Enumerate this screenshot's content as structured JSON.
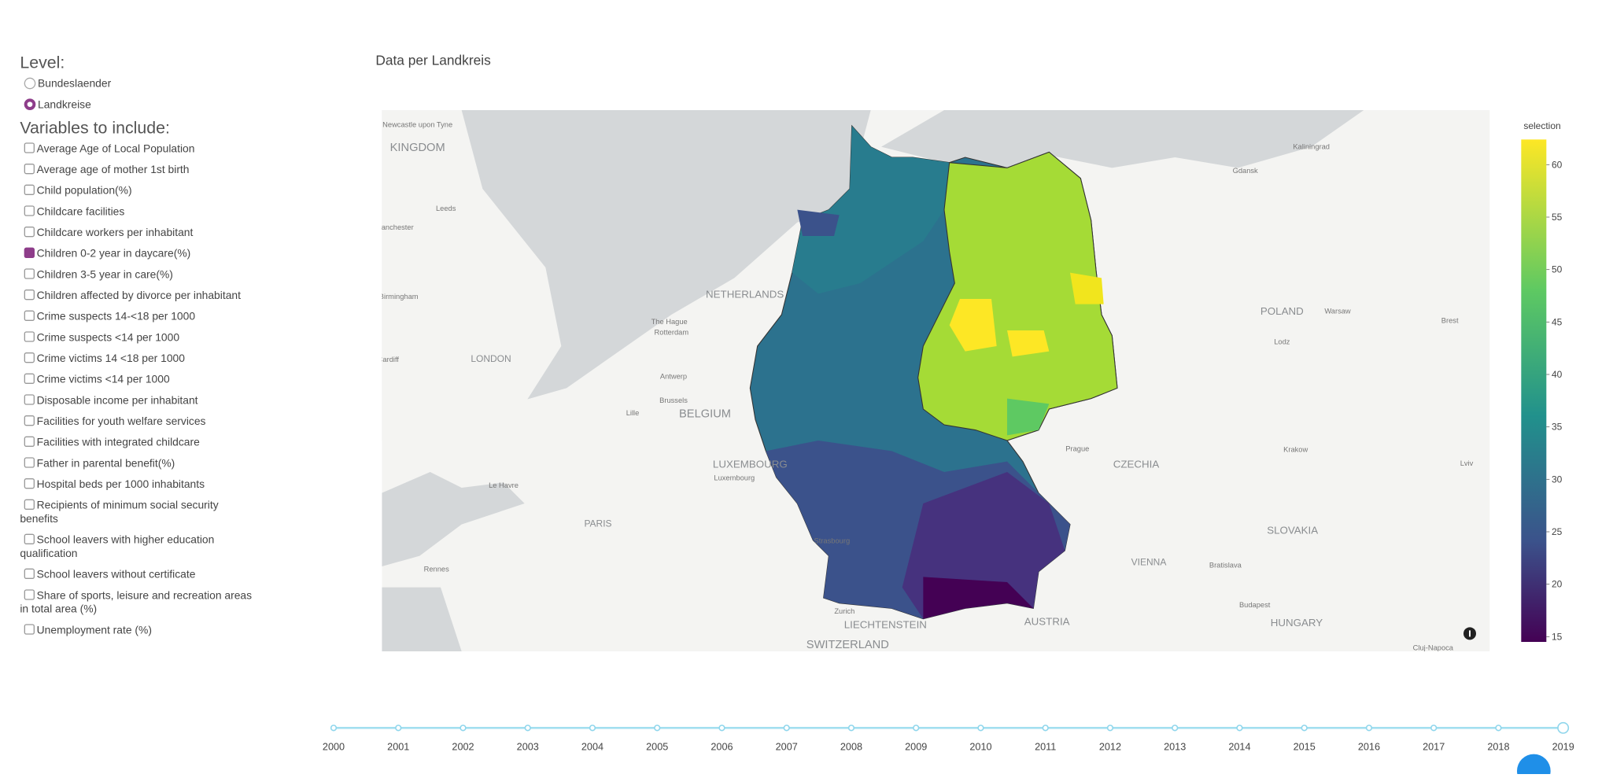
{
  "level": {
    "label": "Level:",
    "options": [
      "Bundeslaender",
      "Landkreise"
    ],
    "selected": 1
  },
  "variables": {
    "label": "Variables to include:",
    "options": [
      "Average Age of Local Population",
      "Average age of mother 1st birth",
      "Child population(%)",
      "Childcare facilities",
      "Childcare workers per inhabitant",
      "Children 0-2 year in daycare(%)",
      "Children 3-5 year in care(%)",
      "Children affected by divorce per inhabitant",
      "Crime suspects 14-<18 per 1000",
      "Crime suspects <14 per 1000",
      "Crime victims 14 <18 per 1000",
      "Crime victims <14 per 1000",
      "Disposable income per inhabitant",
      "Facilities for youth welfare services",
      "Facilities with integrated childcare",
      "Father in parental benefit(%)",
      "Hospital beds per 1000 inhabitants",
      "Recipients of minimum social security benefits",
      "School leavers with higher education qualification",
      "School leavers without certificate",
      "Share of sports, leisure and recreation areas in total area (%)",
      "Unemployment rate (%)"
    ],
    "checked": [
      5
    ]
  },
  "map": {
    "title": "Data per Landkreis",
    "labels": [
      "Newcastle upon Tyne",
      "KINGDOM",
      "Leeds",
      "Manchester",
      "Birmingham",
      "LONDON",
      "Cardiff",
      "NETHERLANDS",
      "The Hague",
      "Rotterdam",
      "Antwerp",
      "Brussels",
      "BELGIUM",
      "Lille",
      "LUXEMBOURG",
      "Luxembourg",
      "Le Havre",
      "PARIS",
      "Rennes",
      "Strasbourg",
      "Zurich",
      "LIECHTENSTEIN",
      "SWITZERLAND",
      "AUSTRIA",
      "VIENNA",
      "Bratislava",
      "SLOVAKIA",
      "Budapest",
      "HUNGARY",
      "CZECHIA",
      "Prague",
      "Krakow",
      "POLAND",
      "Warsaw",
      "Lodz",
      "Gdansk",
      "Kaliningrad",
      "Brest",
      "Lviv",
      "Cluj-Napoca"
    ]
  },
  "colorbar": {
    "title": "selection",
    "range": [
      14.5,
      62.4
    ],
    "ticks": [
      15,
      20,
      25,
      30,
      35,
      40,
      45,
      50,
      55,
      60
    ]
  },
  "slider": {
    "years": [
      2000,
      2001,
      2002,
      2003,
      2004,
      2005,
      2006,
      2007,
      2008,
      2009,
      2010,
      2011,
      2012,
      2013,
      2014,
      2015,
      2016,
      2017,
      2018,
      2019
    ],
    "selected": 19
  }
}
